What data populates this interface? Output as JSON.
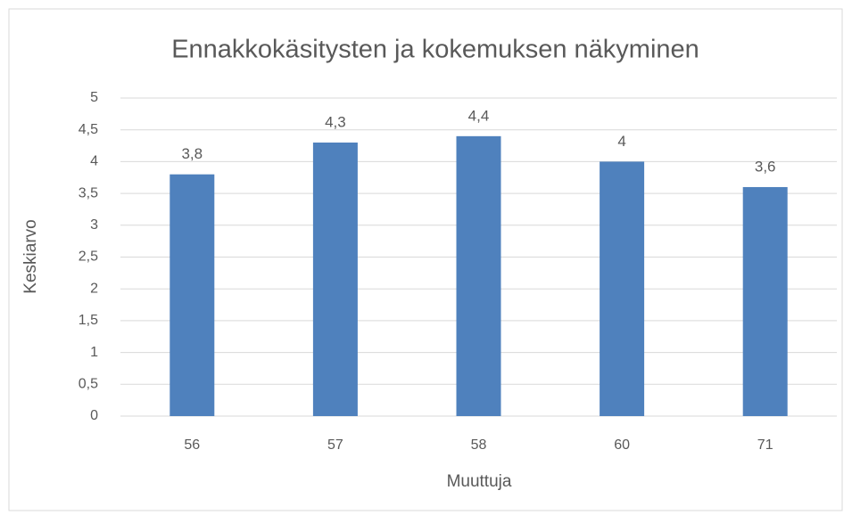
{
  "chart_data": {
    "type": "bar",
    "title": "Ennakkokäsitysten ja kokemuksen näkyminen",
    "x_label": "Muuttuja",
    "y_label": "Keskiarvo",
    "categories": [
      "56",
      "57",
      "58",
      "60",
      "71"
    ],
    "values": [
      3.8,
      4.3,
      4.4,
      4,
      3.6
    ],
    "value_labels": [
      "3,8",
      "4,3",
      "4,4",
      "4",
      "3,6"
    ],
    "color": "#4f81bd",
    "ylim": [
      0,
      5
    ],
    "yticks": [
      0,
      {
        "value": 0.5,
        "label": "0,5"
      },
      1,
      {
        "value": 1.5,
        "label": "1,5"
      },
      2,
      {
        "value": 2.5,
        "label": "2,5"
      },
      3,
      {
        "value": 3.5,
        "label": "3,5"
      },
      4,
      {
        "value": 4.5,
        "label": "4,5"
      },
      5
    ],
    "grid": true
  }
}
